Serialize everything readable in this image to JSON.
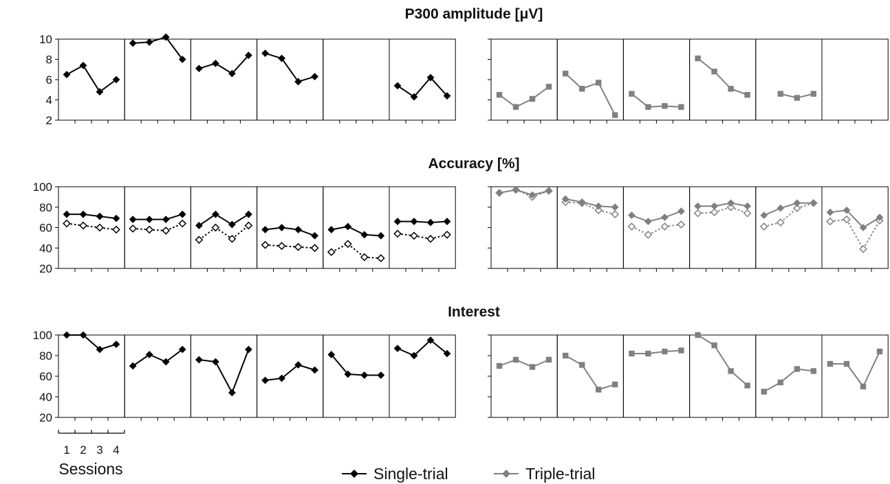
{
  "chart_data": [
    {
      "type": "line",
      "title": "P300 amplitude [μV]",
      "ylim": [
        2,
        10
      ],
      "yticks": [
        2,
        4,
        6,
        8,
        10
      ],
      "x": [
        1,
        2,
        3,
        4
      ],
      "groups": [
        {
          "name": "Single-trial",
          "color": "#000000",
          "marker": "diamond",
          "panels": [
            {
              "single": [
                6.5,
                7.4,
                4.8,
                6.0
              ]
            },
            {
              "single": [
                9.6,
                9.7,
                10.2,
                8.0
              ]
            },
            {
              "single": [
                7.1,
                7.6,
                6.6,
                8.4
              ]
            },
            {
              "single": [
                8.6,
                8.1,
                5.8,
                6.3
              ]
            },
            {
              "single": [
                null,
                null,
                null,
                null
              ]
            },
            {
              "single": [
                5.4,
                4.3,
                6.2,
                4.4
              ]
            }
          ]
        },
        {
          "name": "Triple-trial",
          "color": "#808080",
          "marker": "square",
          "panels": [
            {
              "single": [
                4.5,
                3.3,
                4.1,
                5.3
              ]
            },
            {
              "single": [
                6.6,
                5.1,
                5.7,
                2.5
              ]
            },
            {
              "single": [
                4.6,
                3.3,
                3.4,
                3.3
              ]
            },
            {
              "single": [
                8.1,
                6.8,
                5.1,
                4.5
              ]
            },
            {
              "single": [
                null,
                4.6,
                4.2,
                4.6
              ]
            },
            {
              "single": [
                null,
                null,
                null,
                null
              ]
            }
          ]
        }
      ]
    },
    {
      "type": "line",
      "title": "Accuracy [%]",
      "ylim": [
        20,
        100
      ],
      "yticks": [
        20,
        40,
        60,
        80,
        100
      ],
      "x": [
        1,
        2,
        3,
        4
      ],
      "groups": [
        {
          "name": "Single-trial",
          "color": "#000000",
          "marker": "diamond",
          "panels": [
            {
              "single": [
                73,
                73,
                71,
                69
              ],
              "triple": [
                64,
                62,
                60,
                58
              ]
            },
            {
              "single": [
                68,
                68,
                68,
                73
              ],
              "triple": [
                59,
                58,
                57,
                64
              ]
            },
            {
              "single": [
                62,
                73,
                63,
                73
              ],
              "triple": [
                48,
                60,
                49,
                62
              ]
            },
            {
              "single": [
                58,
                60,
                58,
                52
              ],
              "triple": [
                43,
                42,
                41,
                40
              ]
            },
            {
              "single": [
                58,
                61,
                53,
                52
              ],
              "triple": [
                36,
                44,
                31,
                30
              ]
            },
            {
              "single": [
                66,
                66,
                65,
                66
              ],
              "triple": [
                54,
                52,
                49,
                53
              ]
            }
          ]
        },
        {
          "name": "Triple-trial",
          "color": "#808080",
          "marker": "diamond",
          "panels": [
            {
              "single": [
                94,
                97,
                92,
                96
              ],
              "triple": [
                94,
                97,
                90,
                96
              ]
            },
            {
              "single": [
                88,
                85,
                81,
                80
              ],
              "triple": [
                85,
                84,
                77,
                73
              ]
            },
            {
              "single": [
                72,
                66,
                70,
                76
              ],
              "triple": [
                61,
                53,
                61,
                63
              ]
            },
            {
              "single": [
                81,
                81,
                84,
                81
              ],
              "triple": [
                74,
                75,
                80,
                74
              ]
            },
            {
              "single": [
                72,
                79,
                84,
                84
              ],
              "triple": [
                61,
                65,
                79,
                84
              ]
            },
            {
              "single": [
                75,
                77,
                60,
                70
              ],
              "triple": [
                66,
                68,
                39,
                67
              ]
            }
          ]
        }
      ]
    },
    {
      "type": "line",
      "title": "Interest",
      "ylim": [
        20,
        100
      ],
      "yticks": [
        20,
        40,
        60,
        80,
        100
      ],
      "x": [
        1,
        2,
        3,
        4
      ],
      "groups": [
        {
          "name": "Single-trial",
          "color": "#000000",
          "marker": "diamond",
          "panels": [
            {
              "single": [
                100,
                100,
                86,
                91
              ]
            },
            {
              "single": [
                70,
                81,
                74,
                86
              ]
            },
            {
              "single": [
                76,
                74,
                44,
                86
              ]
            },
            {
              "single": [
                56,
                58,
                71,
                66
              ]
            },
            {
              "single": [
                81,
                62,
                61,
                61
              ]
            },
            {
              "single": [
                87,
                80,
                95,
                82
              ]
            }
          ]
        },
        {
          "name": "Triple-trial",
          "color": "#808080",
          "marker": "square",
          "panels": [
            {
              "single": [
                70,
                76,
                69,
                76
              ]
            },
            {
              "single": [
                80,
                71,
                47,
                52
              ]
            },
            {
              "single": [
                82,
                82,
                84,
                85
              ]
            },
            {
              "single": [
                100,
                90,
                65,
                51
              ]
            },
            {
              "single": [
                45,
                54,
                67,
                65
              ]
            },
            {
              "single": [
                72,
                72,
                50,
                84
              ]
            }
          ]
        }
      ]
    }
  ],
  "xaxis": {
    "sessions_label": "Sessions",
    "session_ticks": [
      "1",
      "2",
      "3",
      "4"
    ]
  },
  "legend": [
    {
      "label": "Single-trial",
      "color": "#000000",
      "marker": "diamond"
    },
    {
      "label": "Triple-trial",
      "color": "#808080",
      "marker": "diamond"
    }
  ]
}
